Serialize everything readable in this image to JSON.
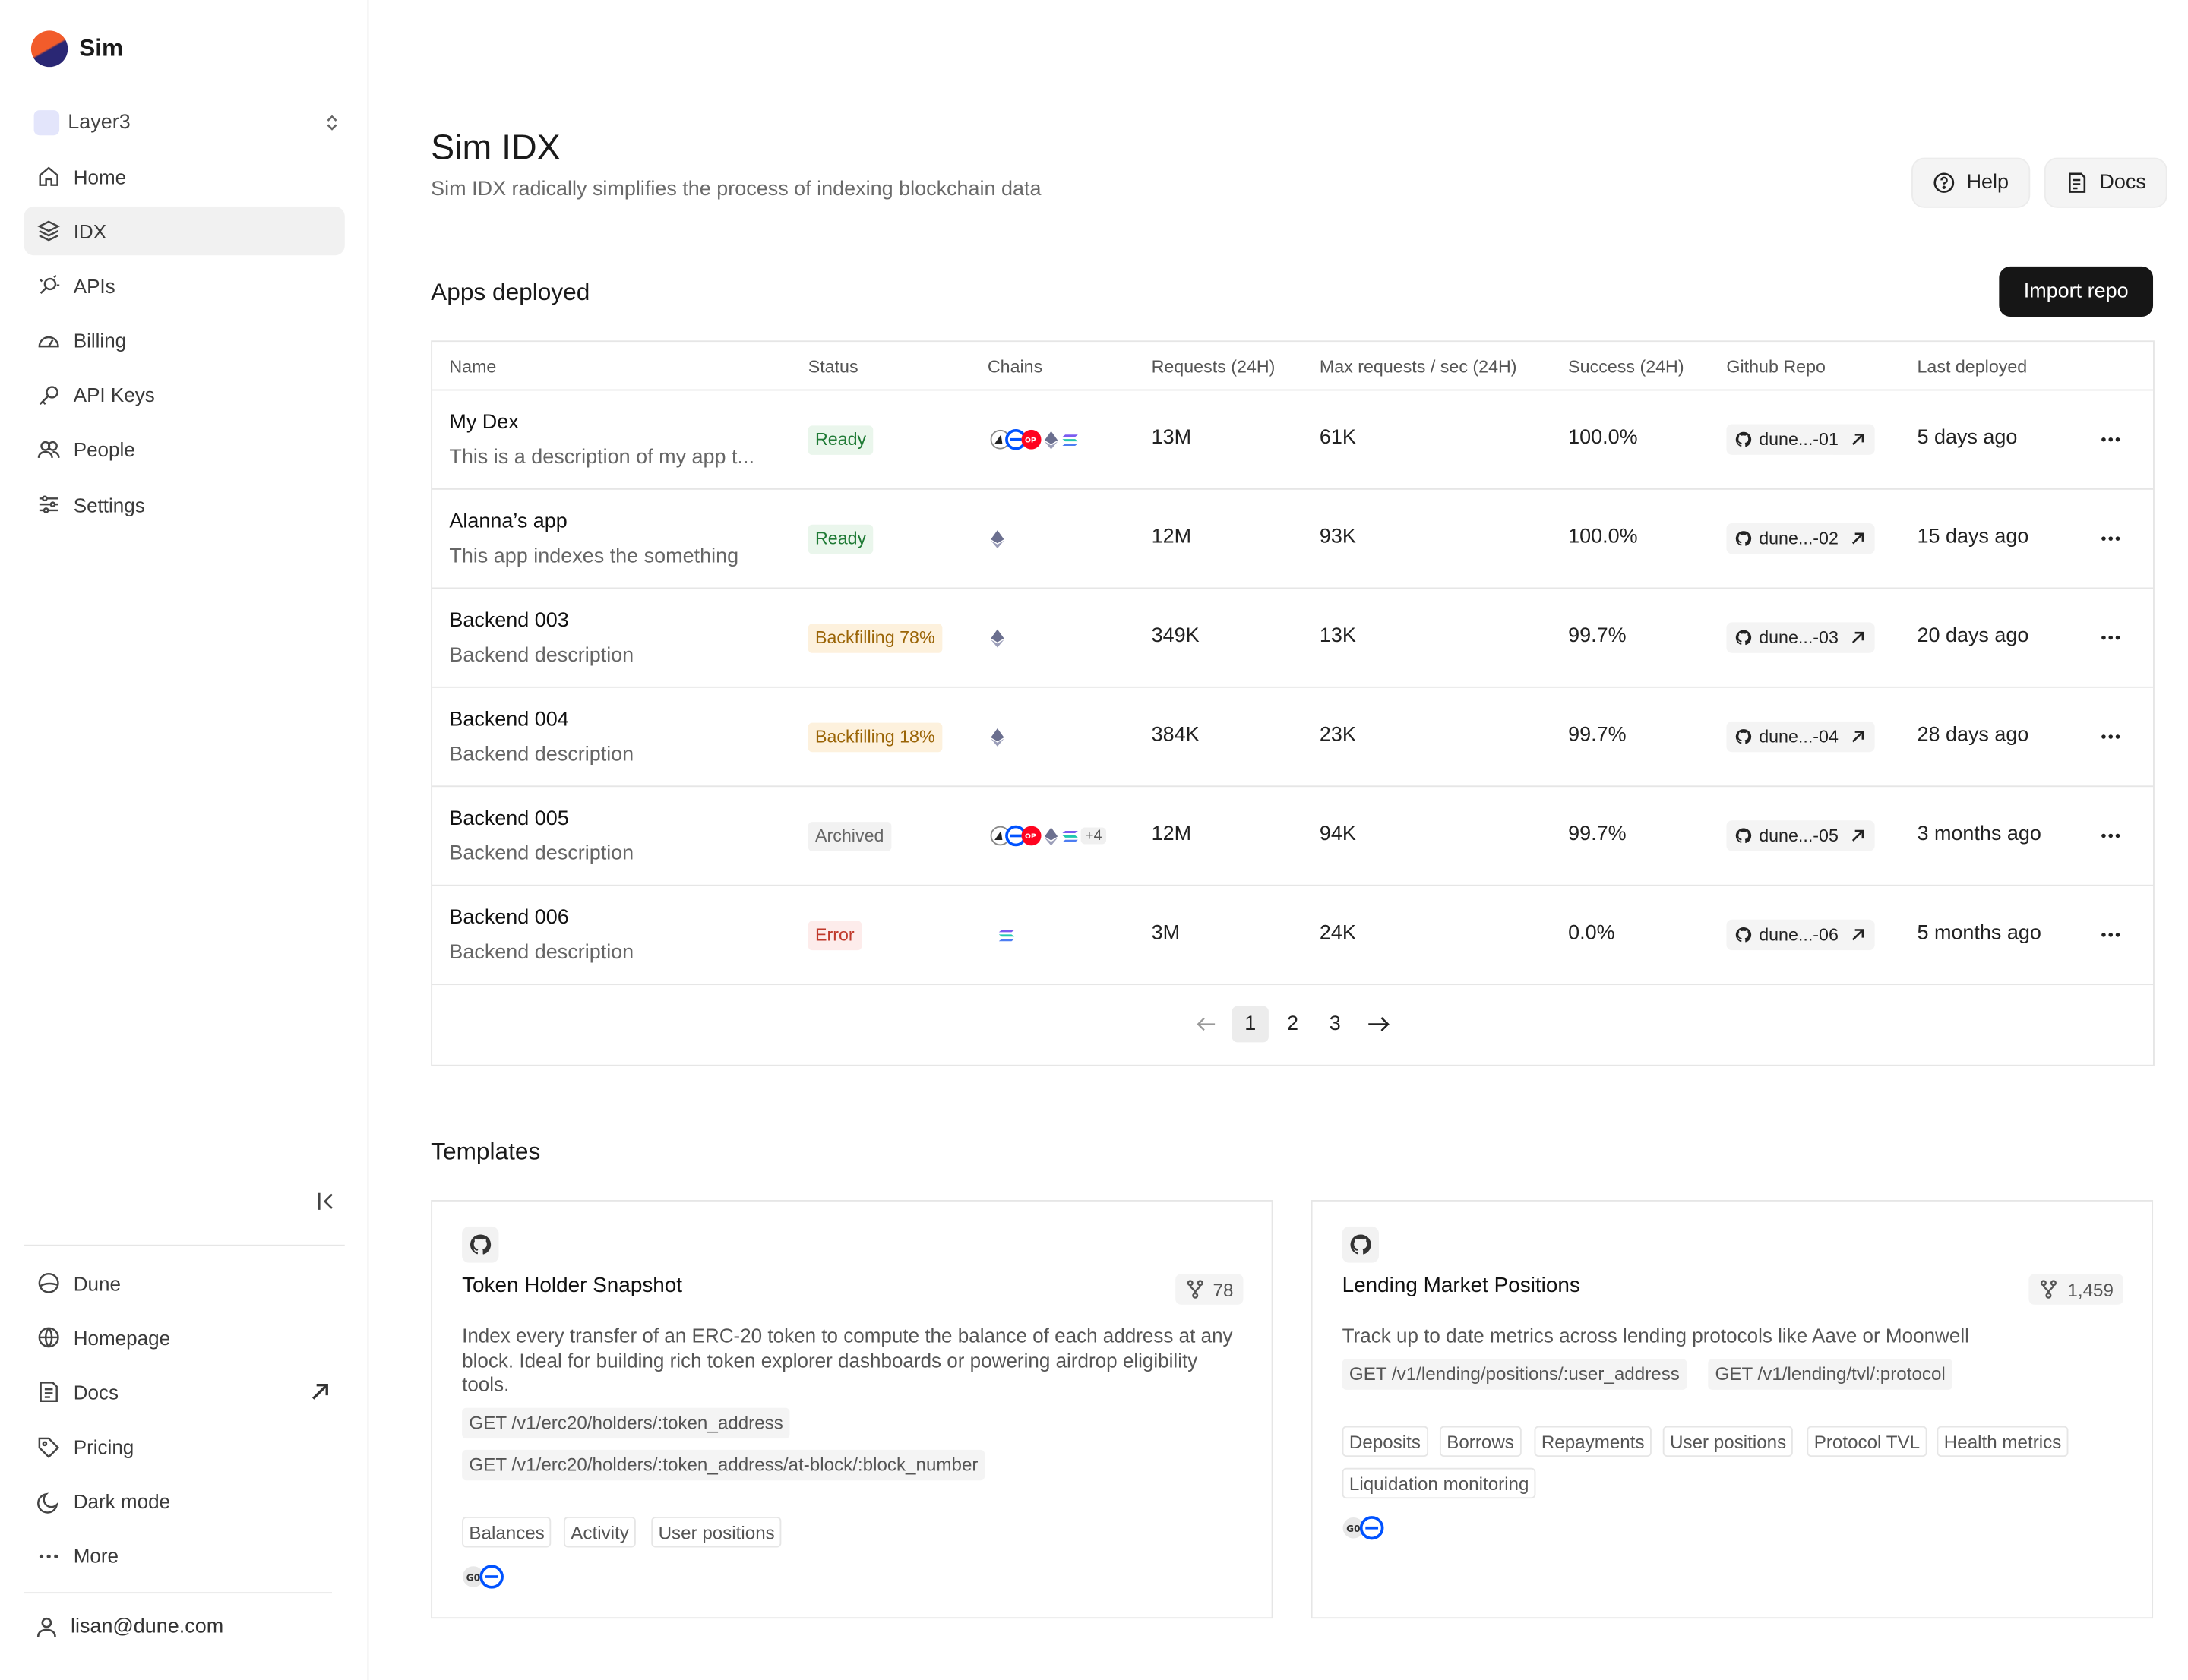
{
  "brand": {
    "name": "Sim"
  },
  "workspace": {
    "name": "Layer3"
  },
  "nav": [
    {
      "label": "Home",
      "icon": "home-icon"
    },
    {
      "label": "IDX",
      "icon": "layers-icon",
      "active": true
    },
    {
      "label": "APIs",
      "icon": "api-icon"
    },
    {
      "label": "Billing",
      "icon": "gauge-icon"
    },
    {
      "label": "API Keys",
      "icon": "key-icon"
    },
    {
      "label": "People",
      "icon": "people-icon"
    },
    {
      "label": "Settings",
      "icon": "sliders-icon"
    }
  ],
  "bottom_nav": [
    {
      "label": "Dune",
      "icon": "dune-icon"
    },
    {
      "label": "Homepage",
      "icon": "globe-icon"
    },
    {
      "label": "Docs",
      "icon": "docs-icon",
      "external": true
    },
    {
      "label": "Pricing",
      "icon": "tag-icon"
    },
    {
      "label": "Dark mode",
      "icon": "moon-icon"
    },
    {
      "label": "More",
      "icon": "more-icon"
    }
  ],
  "user": {
    "email": "lisan@dune.com"
  },
  "page": {
    "title": "Sim IDX",
    "subtitle": "Sim IDX radically simplifies the process of indexing blockchain data",
    "help_label": "Help",
    "docs_label": "Docs"
  },
  "apps": {
    "heading": "Apps deployed",
    "import_label": "Import repo",
    "columns": [
      "Name",
      "Status",
      "Chains",
      "Requests (24H)",
      "Max requests / sec (24H)",
      "Success (24H)",
      "Github Repo",
      "Last deployed"
    ],
    "rows": [
      {
        "name": "My Dex",
        "desc": "This is a description of my app t...",
        "status": "Ready",
        "status_kind": "ready",
        "chains": "multi",
        "chains_extra": "",
        "requests": "13M",
        "max_rps": "61K",
        "success": "100.0%",
        "repo": "dune...-01",
        "deployed": "5 days ago"
      },
      {
        "name": "Alanna’s app",
        "desc": "This app indexes the something",
        "status": "Ready",
        "status_kind": "ready",
        "chains": "eth",
        "chains_extra": "",
        "requests": "12M",
        "max_rps": "93K",
        "success": "100.0%",
        "repo": "dune...-02",
        "deployed": "15 days ago"
      },
      {
        "name": "Backend 003",
        "desc": "Backend description",
        "status": "Backfilling 78%",
        "status_kind": "back",
        "chains": "eth",
        "chains_extra": "",
        "requests": "349K",
        "max_rps": "13K",
        "success": "99.7%",
        "repo": "dune...-03",
        "deployed": "20 days ago"
      },
      {
        "name": "Backend 004",
        "desc": "Backend description",
        "status": "Backfilling 18%",
        "status_kind": "back",
        "chains": "eth",
        "chains_extra": "",
        "requests": "384K",
        "max_rps": "23K",
        "success": "99.7%",
        "repo": "dune...-04",
        "deployed": "28 days ago"
      },
      {
        "name": "Backend 005",
        "desc": "Backend description",
        "status": "Archived",
        "status_kind": "arch",
        "chains": "multi",
        "chains_extra": "+4",
        "requests": "12M",
        "max_rps": "94K",
        "success": "99.7%",
        "repo": "dune...-05",
        "deployed": "3 months ago"
      },
      {
        "name": "Backend 006",
        "desc": "Backend description",
        "status": "Error",
        "status_kind": "err",
        "chains": "sol",
        "chains_extra": "",
        "requests": "3M",
        "max_rps": "24K",
        "success": "0.0%",
        "repo": "dune...-06",
        "deployed": "5 months ago"
      }
    ],
    "pages": [
      "1",
      "2",
      "3"
    ],
    "current_page": "1"
  },
  "templates": {
    "heading": "Templates",
    "cards": [
      {
        "title": "Token Holder Snapshot",
        "stars": "78",
        "desc": "Index every transfer of an ERC-20 token to compute the balance of each address at any block. Ideal for building rich token explorer dashboards or powering airdrop eligibility tools.",
        "endpoints": [
          "GET /v1/erc20/holders/:token_address",
          "GET /v1/erc20/holders/:token_address/at-block/:block_number"
        ],
        "tags": [
          "Balances",
          "Activity",
          "User positions"
        ]
      },
      {
        "title": "Lending Market Positions",
        "stars": "1,459",
        "desc": "Track up to date metrics across lending protocols like Aave or Moonwell",
        "endpoints": [
          "GET /v1/lending/positions/:user_address",
          "GET /v1/lending/tvl/:protocol"
        ],
        "tags": [
          "Deposits",
          "Borrows",
          "Repayments",
          "User positions",
          "Protocol TVL",
          "Health metrics",
          "Liquidation monitoring"
        ]
      }
    ]
  },
  "colors": {
    "accent_orange": "#f25c2b",
    "accent_navy": "#2a2774",
    "ready_green": "#1f7a35",
    "backfill_amber": "#9a6406",
    "error_red": "#c0392b"
  }
}
